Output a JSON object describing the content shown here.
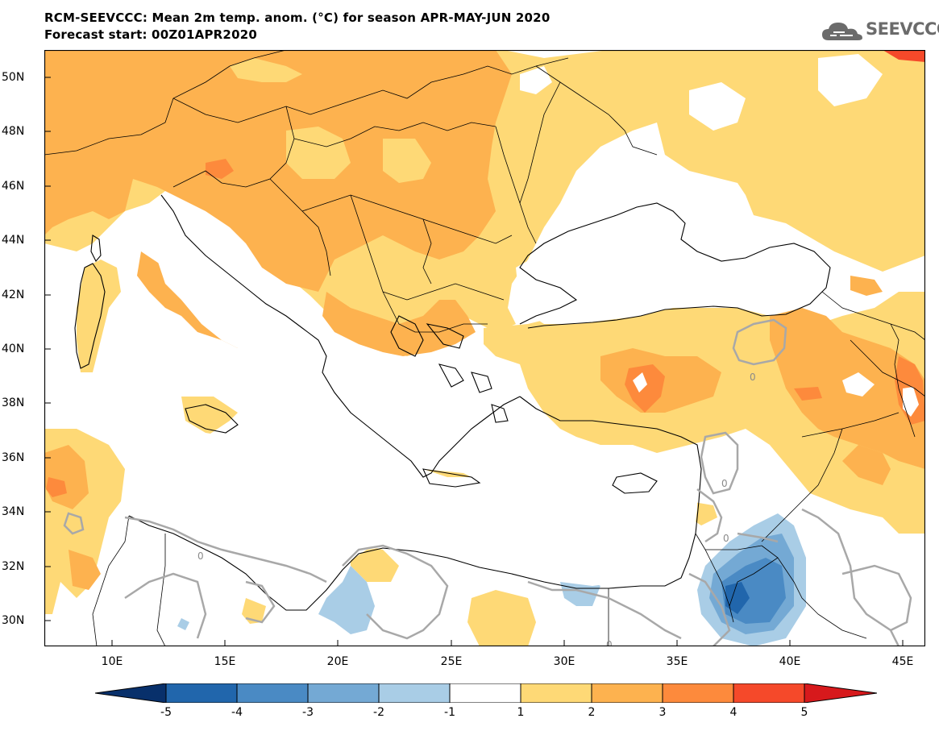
{
  "header": {
    "title_line1": "RCM-SEEVCCC: Mean 2m temp. anom. (°C) for season APR-MAY-JUN 2020",
    "title_line2": "Forecast start: 00Z01APR2020",
    "logo_text": "SEEVCCC"
  },
  "map": {
    "lat_labels": [
      "50N",
      "48N",
      "46N",
      "44N",
      "42N",
      "40N",
      "38N",
      "36N",
      "34N",
      "32N",
      "30N"
    ],
    "lon_labels": [
      "10E",
      "15E",
      "20E",
      "25E",
      "30E",
      "35E",
      "40E",
      "45E"
    ],
    "contour_labels": [
      "0",
      "0",
      "0",
      "0",
      "0"
    ],
    "extent": {
      "lon": [
        7,
        46
      ],
      "lat": [
        29,
        51
      ]
    }
  },
  "colorbar": {
    "labels": [
      "-5",
      "-4",
      "-3",
      "-2",
      "-1",
      "1",
      "2",
      "3",
      "4",
      "5"
    ],
    "colors": {
      "below_-5": "#08306b",
      "-5_-4": "#2166ac",
      "-4_-3": "#4a8ac4",
      "-3_-2": "#74a9d4",
      "-2_-1": "#a9cde6",
      "-1_1": "#ffffff",
      "1_2": "#fed976",
      "2_3": "#fdb24f",
      "3_4": "#fd8a3c",
      "4_5": "#f5492a",
      "above_5": "#d7191c"
    }
  }
}
